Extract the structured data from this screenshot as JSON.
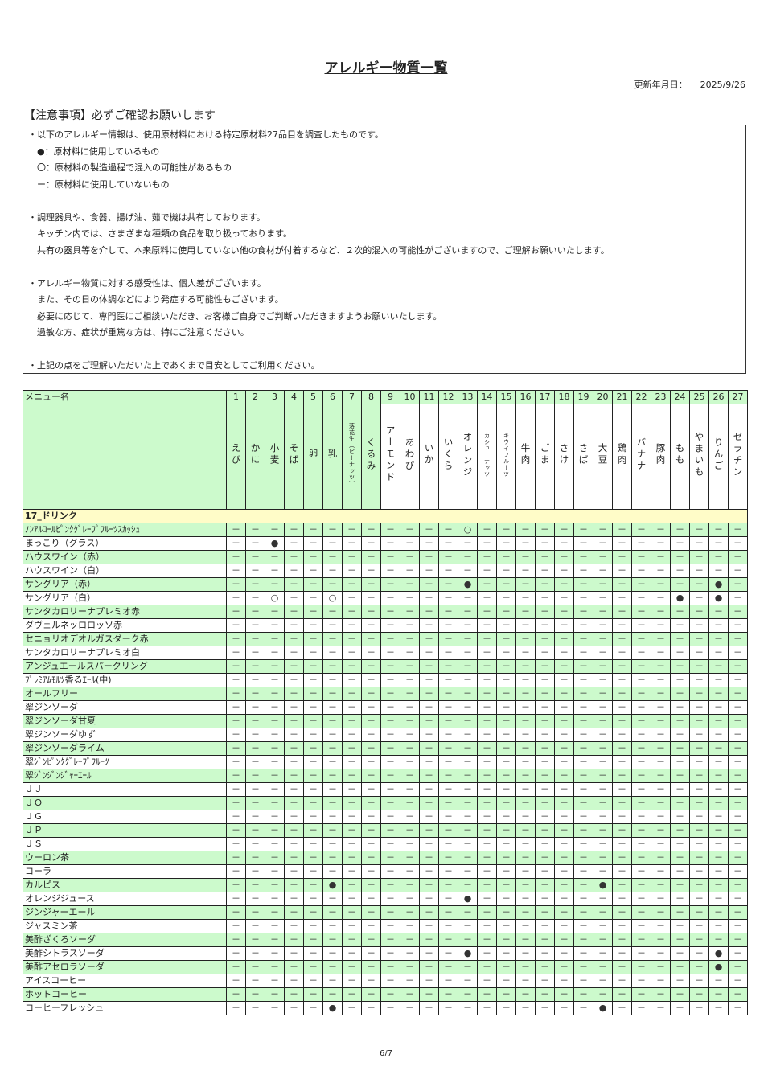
{
  "title": "アレルギー物質一覧",
  "updated": {
    "label": "更新年月日：",
    "date": "2025/9/26"
  },
  "notice": {
    "title": "【注意事項】必ずご確認お願いします",
    "lines": [
      "・以下のアレルギー情報は、使用原材料における特定原材料27品目を調査したものです。",
      "　●：原材料に使用しているもの",
      "　〇：原材料の製造過程で混入の可能性があるもの",
      "　ー：原材料に使用していないもの",
      "",
      "・調理器具や、食器、揚げ油、茹で機は共有しております。",
      "　キッチン内では、さまざまな種類の食品を取り扱っております。",
      "　共有の器具等を介して、本来原料に使用していない他の食材が付着するなど、２次的混入の可能性がございますので、ご理解お願いいたします。",
      "",
      "・アレルギー物質に対する感受性は、個人差がございます。",
      "　また、その日の体調などにより発症する可能性もございます。",
      "　必要に応じて、専門医にご相談いただき、お客様ご自身でご判断いただきますようお願いいたします。",
      "　過敏な方、症状が重篤な方は、特にご注意ください。",
      "",
      "・上記の点をご理解いただいた上であくまで目安としてご利用ください。"
    ]
  },
  "table": {
    "menu_header": "メニュー名",
    "symbols": {
      "none": "－"
    },
    "allergens": [
      "えび",
      "かに",
      "小麦",
      "そば",
      "卵",
      "乳",
      "落花生（ピーナッツ）",
      "くるみ",
      "アーモンド",
      "あわび",
      "いか",
      "いくら",
      "オレンジ",
      "カシューナッツ",
      "キウイフルーツ",
      "牛肉",
      "ごま",
      "さけ",
      "さば",
      "大豆",
      "鶏肉",
      "バナナ",
      "豚肉",
      "もも",
      "やまいも",
      "りんご",
      "ゼラチン"
    ],
    "category": "17_ドリンク",
    "rows": [
      {
        "name": "ﾉﾝｱﾙｺｰﾙﾋﾟﾝｸｸﾞﾚｰﾌﾟﾌﾙｰﾂｽｶｯｼｭ",
        "marks": {
          "13": "○"
        }
      },
      {
        "name": "まっこり（グラス）",
        "marks": {
          "3": "●"
        }
      },
      {
        "name": "ハウスワイン（赤）",
        "marks": {}
      },
      {
        "name": "ハウスワイン（白）",
        "marks": {}
      },
      {
        "name": "サングリア（赤）",
        "marks": {
          "13": "●",
          "26": "●"
        }
      },
      {
        "name": "サングリア（白）",
        "marks": {
          "3": "○",
          "6": "○",
          "24": "●",
          "26": "●"
        }
      },
      {
        "name": "サンタカロリーナプレミオ赤",
        "marks": {}
      },
      {
        "name": "ダヴェルネッロロッソ赤",
        "marks": {}
      },
      {
        "name": "セニョリオデオルガスダーク赤",
        "marks": {}
      },
      {
        "name": "サンタカロリーナプレミオ白",
        "marks": {}
      },
      {
        "name": "アンジュエールスパークリング",
        "marks": {}
      },
      {
        "name": "ﾌﾟﾚﾐｱﾑﾓﾙﾂ香るｴｰﾙ(中)",
        "marks": {}
      },
      {
        "name": "オールフリー",
        "marks": {}
      },
      {
        "name": "翠ジンソーダ",
        "marks": {}
      },
      {
        "name": "翠ジンソーダ甘夏",
        "marks": {}
      },
      {
        "name": "翠ジンソーダゆず",
        "marks": {}
      },
      {
        "name": "翠ジンソーダライム",
        "marks": {}
      },
      {
        "name": "翠ｼﾞﾝﾋﾟﾝｸｸﾞﾚｰﾌﾟﾌﾙｰﾂ",
        "marks": {}
      },
      {
        "name": "翠ｼﾞﾝｼﾞﾝｼﾞｬｰｴｰﾙ",
        "marks": {}
      },
      {
        "name": "ＪＪ",
        "marks": {}
      },
      {
        "name": "ＪＯ",
        "marks": {}
      },
      {
        "name": "ＪＧ",
        "marks": {}
      },
      {
        "name": "ＪＰ",
        "marks": {}
      },
      {
        "name": "ＪＳ",
        "marks": {}
      },
      {
        "name": "ウーロン茶",
        "marks": {}
      },
      {
        "name": "コーラ",
        "marks": {}
      },
      {
        "name": "カルピス",
        "marks": {
          "6": "●",
          "20": "●"
        }
      },
      {
        "name": "オレンジジュース",
        "marks": {
          "13": "●"
        }
      },
      {
        "name": "ジンジャーエール",
        "marks": {}
      },
      {
        "name": "ジャスミン茶",
        "marks": {}
      },
      {
        "name": "美酢ざくろソーダ",
        "marks": {}
      },
      {
        "name": "美酢シトラスソーダ",
        "marks": {
          "13": "●",
          "26": "●"
        }
      },
      {
        "name": "美酢アセロラソーダ",
        "marks": {
          "26": "●"
        }
      },
      {
        "name": "アイスコーヒー",
        "marks": {}
      },
      {
        "name": "ホットコーヒー",
        "marks": {}
      },
      {
        "name": "コーヒーフレッシュ",
        "marks": {
          "6": "●",
          "20": "●"
        }
      }
    ]
  },
  "footer": {
    "page": "6/7"
  },
  "colors": {
    "row_green": "#ccfacc",
    "category_yellow": "#fffcc8"
  }
}
